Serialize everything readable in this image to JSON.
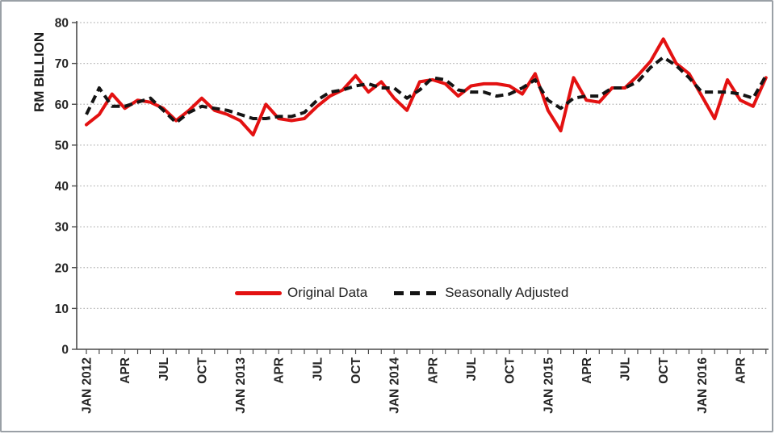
{
  "chart_data": {
    "type": "line",
    "title": "",
    "y_axis_title": "RM BILLION",
    "ylim": [
      0,
      80
    ],
    "y_ticks": [
      0,
      10,
      20,
      30,
      40,
      50,
      60,
      70,
      80
    ],
    "grid": "horizontal dotted gridlines on",
    "legend_position": "inside plot, lower center",
    "x_label_every_n_months": 3,
    "x_labels_shown": [
      "JAN 2012",
      "APR",
      "JUL",
      "OCT",
      "JAN 2013",
      "APR",
      "JUL",
      "OCT",
      "JAN 2014",
      "APR",
      "JUL",
      "OCT",
      "JAN 2015",
      "APR",
      "JUL",
      "OCT",
      "JAN 2016",
      "APR"
    ],
    "categories": [
      "JAN 2012",
      "FEB 2012",
      "MAR 2012",
      "APR 2012",
      "MAY 2012",
      "JUN 2012",
      "JUL 2012",
      "AUG 2012",
      "SEP 2012",
      "OCT 2012",
      "NOV 2012",
      "DEC 2012",
      "JAN 2013",
      "FEB 2013",
      "MAR 2013",
      "APR 2013",
      "MAY 2013",
      "JUN 2013",
      "JUL 2013",
      "AUG 2013",
      "SEP 2013",
      "OCT 2013",
      "NOV 2013",
      "DEC 2013",
      "JAN 2014",
      "FEB 2014",
      "MAR 2014",
      "APR 2014",
      "MAY 2014",
      "JUN 2014",
      "JUL 2014",
      "AUG 2014",
      "SEP 2014",
      "OCT 2014",
      "NOV 2014",
      "DEC 2014",
      "JAN 2015",
      "FEB 2015",
      "MAR 2015",
      "APR 2015",
      "MAY 2015",
      "JUN 2015",
      "JUL 2015",
      "AUG 2015",
      "SEP 2015",
      "OCT 2015",
      "NOV 2015",
      "DEC 2015",
      "JAN 2016",
      "FEB 2016",
      "MAR 2016",
      "APR 2016",
      "MAY 2016",
      "JUN 2016"
    ],
    "series": [
      {
        "name": "Original Data",
        "style": "solid",
        "color": "#e31111",
        "values": [
          55,
          57.5,
          62.5,
          59,
          61,
          60.5,
          59,
          56,
          58.5,
          61.5,
          58.5,
          57.5,
          56,
          52.5,
          60,
          56.5,
          56,
          56.5,
          59.5,
          62,
          63.5,
          67,
          63,
          65.5,
          61.5,
          58.5,
          65.5,
          66,
          65,
          62,
          64.5,
          65,
          65,
          64.5,
          62.5,
          67.5,
          58.5,
          53.5,
          66.5,
          61,
          60.5,
          64,
          64,
          67,
          70.5,
          76,
          70,
          67.5,
          62,
          56.5,
          66,
          61,
          59.5,
          66.5
        ]
      },
      {
        "name": "Seasonally Adjusted",
        "style": "dashed",
        "color": "#141414",
        "values": [
          57.5,
          64,
          59.5,
          59.5,
          60.5,
          61.5,
          58.5,
          55.5,
          58,
          59.5,
          59,
          58.5,
          57.5,
          56.5,
          56.5,
          57,
          57,
          58,
          61,
          63,
          63.5,
          64.5,
          65,
          64,
          64,
          61.5,
          63.5,
          66.5,
          66,
          63.5,
          63,
          63,
          62,
          62.5,
          64,
          66,
          61,
          59,
          61.5,
          62,
          62,
          64,
          64,
          65.5,
          69,
          71.5,
          69.5,
          66.5,
          63,
          63,
          63,
          62.5,
          61.5,
          67
        ]
      }
    ]
  },
  "legend": {
    "original_label": "Original Data",
    "adjusted_label": "Seasonally Adjusted"
  },
  "colors": {
    "original_line": "#e31111",
    "adjusted_line": "#141414",
    "gridline": "#b5b5b5",
    "axis": "#4a4a4a",
    "tick_text": "#262626",
    "frame_border": "#9aa0a6"
  }
}
